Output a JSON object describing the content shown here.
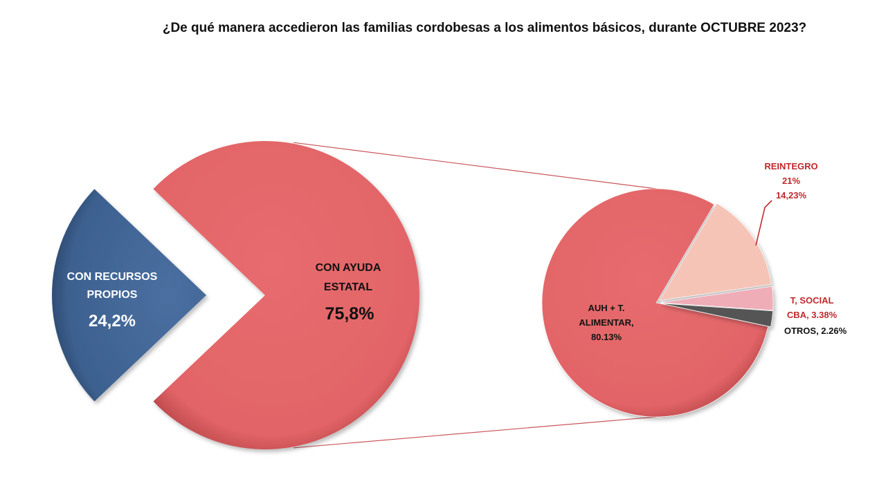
{
  "chart_data": {
    "type": "bar-of-pie",
    "title": "¿De qué manera accedieron las familias cordobesas a los alimentos básicos, durante OCTUBRE 2023?",
    "main_pie": {
      "slices": [
        {
          "label_lines": [
            "CON RECURSOS",
            "PROPIOS"
          ],
          "value_text": "24,2%",
          "value": 24.2,
          "color": "#3d6190"
        },
        {
          "label_lines": [
            "CON  AYUDA",
            "ESTATAL"
          ],
          "value_text": "75,8%",
          "value": 75.8,
          "color": "#e26467"
        }
      ]
    },
    "secondary_pie": {
      "slices": [
        {
          "label_lines": [
            "AUH + T.",
            "ALIMENTAR,",
            "80.13%"
          ],
          "value": 80.13,
          "color": "#e26467",
          "label_color": "#111111"
        },
        {
          "label_lines": [
            "REINTEGRO",
            "21%",
            "14,23%"
          ],
          "value": 14.23,
          "color": "#f5c4b6",
          "label_color": "#c0282c"
        },
        {
          "label_lines": [
            "T, SOCIAL",
            "CBA, 3.38%"
          ],
          "value": 3.38,
          "color": "#efadb8",
          "label_color": "#c0282c"
        },
        {
          "label_lines": [
            "OTROS, 2.26%"
          ],
          "value": 2.26,
          "color": "#555555",
          "label_color": "#111111"
        }
      ]
    },
    "colors": {
      "leader": "#c0282c",
      "connector": "#c9555a"
    }
  }
}
